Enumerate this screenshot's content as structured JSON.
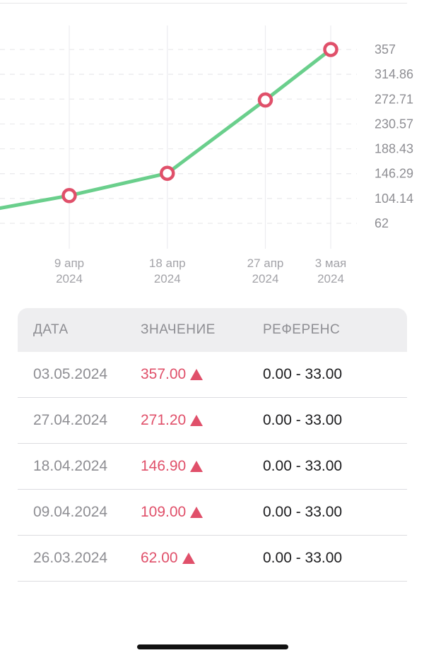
{
  "chart_data": {
    "type": "line",
    "x": [
      "2024-03-26",
      "2024-04-09",
      "2024-04-18",
      "2024-04-27",
      "2024-05-03"
    ],
    "y": [
      62.0,
      109.0,
      146.9,
      271.2,
      357.0
    ],
    "ylim": [
      62,
      357
    ],
    "y_ticks": [
      "357",
      "314.86",
      "272.71",
      "230.57",
      "188.43",
      "146.29",
      "104.14",
      "62"
    ],
    "x_ticks": [
      {
        "line1": "9 апр",
        "line2": "2024"
      },
      {
        "line1": "18 апр",
        "line2": "2024"
      },
      {
        "line1": "27 апр",
        "line2": "2024"
      },
      {
        "line1": "3 мая",
        "line2": "2024"
      }
    ],
    "line_color": "#6acf8c",
    "marker_color": "#e0506a",
    "grid": true
  },
  "table": {
    "headers": [
      "ДАТА",
      "ЗНАЧЕНИЕ",
      "РЕФЕРЕНС"
    ],
    "rows": [
      {
        "date": "03.05.2024",
        "value": "357.00",
        "ref": "0.00 - 33.00"
      },
      {
        "date": "27.04.2024",
        "value": "271.20",
        "ref": "0.00 - 33.00"
      },
      {
        "date": "18.04.2024",
        "value": "146.90",
        "ref": "0.00 - 33.00"
      },
      {
        "date": "09.04.2024",
        "value": "109.00",
        "ref": "0.00 - 33.00"
      },
      {
        "date": "26.03.2024",
        "value": "62.00",
        "ref": "0.00 - 33.00"
      }
    ]
  }
}
